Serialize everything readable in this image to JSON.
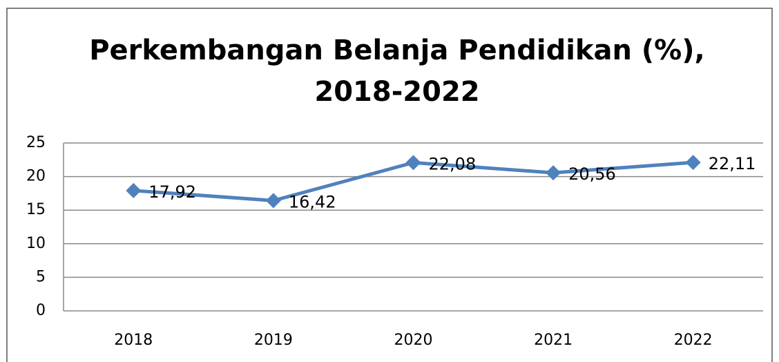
{
  "chart_data": {
    "type": "line",
    "title": [
      "Perkembangan Belanja Pendidikan (%),",
      "2018-2022"
    ],
    "categories": [
      "2018",
      "2019",
      "2020",
      "2021",
      "2022"
    ],
    "series": [
      {
        "name": null,
        "color": "#4f81bd",
        "values": [
          17.92,
          16.42,
          22.08,
          20.56,
          22.11
        ],
        "value_labels": [
          "17,92",
          "16,42",
          "22,08",
          "20,56",
          "22,11"
        ]
      }
    ],
    "ylim": [
      0,
      25
    ],
    "yticks": [
      0,
      5,
      10,
      15,
      20,
      25
    ],
    "grid": true
  }
}
